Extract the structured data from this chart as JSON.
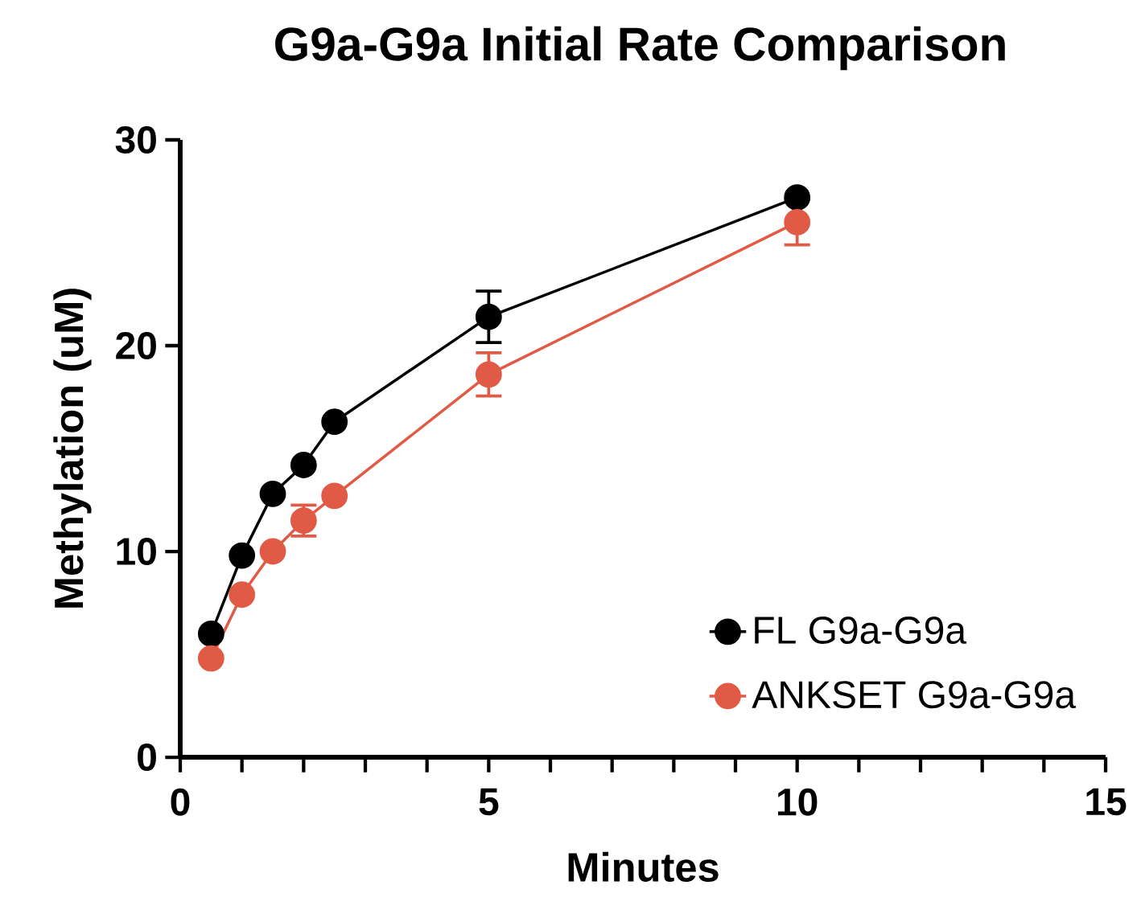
{
  "chart_data": {
    "type": "line",
    "title": "G9a-G9a Initial Rate Comparison",
    "xlabel": "Minutes",
    "ylabel": "Methylation (uM)",
    "xlim": [
      0,
      15
    ],
    "ylim": [
      0,
      30
    ],
    "xticks": [
      0,
      {
        "value": 1,
        "label": null
      },
      {
        "value": 2,
        "label": null
      },
      {
        "value": 3,
        "label": null
      },
      {
        "value": 4,
        "label": null
      },
      5,
      {
        "value": 6,
        "label": null
      },
      {
        "value": 7,
        "label": null
      },
      {
        "value": 8,
        "label": null
      },
      {
        "value": 9,
        "label": null
      },
      10,
      {
        "value": 11,
        "label": null
      },
      {
        "value": 12,
        "label": null
      },
      {
        "value": 13,
        "label": null
      },
      {
        "value": 14,
        "label": null
      },
      15
    ],
    "yticks": [
      0,
      10,
      20,
      30
    ],
    "x": [
      0.5,
      1,
      1.5,
      2,
      2.5,
      5,
      10
    ],
    "series": [
      {
        "name": "FL G9a-G9a",
        "color": "#000000",
        "values": [
          6.0,
          9.8,
          12.8,
          14.2,
          16.3,
          21.4,
          27.2
        ],
        "errors": [
          null,
          null,
          null,
          null,
          null,
          1.25,
          null
        ]
      },
      {
        "name": "ANKSET G9a-G9a",
        "color": "#e05a45",
        "values": [
          4.8,
          7.9,
          10.0,
          11.5,
          12.7,
          18.6,
          26.0
        ],
        "errors": [
          null,
          null,
          null,
          0.75,
          null,
          1.05,
          1.1
        ]
      }
    ],
    "marker": "circle",
    "line_style": "solid",
    "legend": "bottom right",
    "grid": false
  }
}
